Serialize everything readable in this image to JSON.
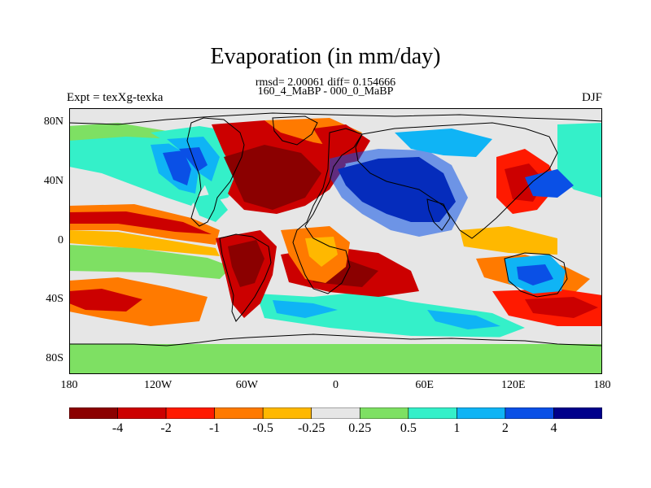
{
  "title": "Evaporation (in mm/day)",
  "stats_line": "rmsd= 2.00061 diff= 0.154666",
  "comparison_line": "160_4_MaBP - 000_0_MaBP",
  "left_label": "Expt = texXg-texka",
  "right_label": "DJF",
  "lat_ticks": [
    "80N",
    "40N",
    "0",
    "40S",
    "80S"
  ],
  "lon_ticks": [
    "180",
    "120W",
    "60W",
    "0",
    "60E",
    "120E",
    "180"
  ],
  "colorbar": {
    "labels": [
      "-4",
      "-2",
      "-1",
      "-0.5",
      "-0.25",
      "0.25",
      "0.5",
      "1",
      "2",
      "4"
    ],
    "colors": [
      "#8b0000",
      "#cc0000",
      "#ff1a00",
      "#ff7a00",
      "#ffb800",
      "#e6e6e6",
      "#7ee063",
      "#34f0c9",
      "#0fb4f5",
      "#0a50e6",
      "#00008b"
    ]
  },
  "map_colors": {
    "neutral": "#e6e6e6",
    "coast": "#000000"
  }
}
